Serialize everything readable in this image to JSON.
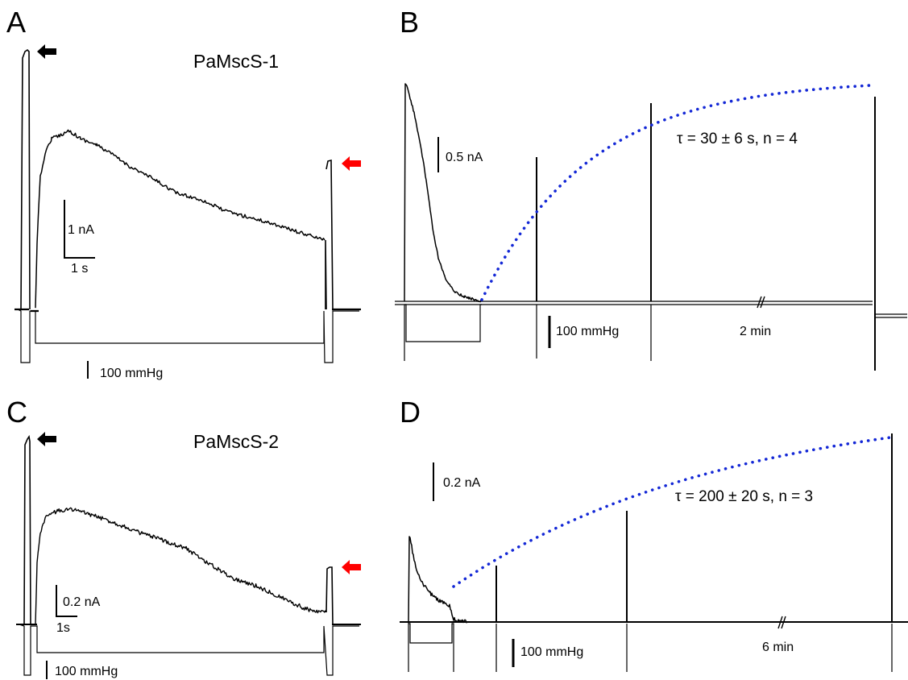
{
  "panels": {
    "a": {
      "letter": "A",
      "construct": "PaMscS-1",
      "current_scale": "1 nA",
      "time_scale": "1 s",
      "pressure_scale": "100 mmHg"
    },
    "b": {
      "letter": "B",
      "current_scale": "0.5 nA",
      "pressure_scale": "100 mmHg",
      "gap_label": "2 min",
      "tau_label": "τ = 30 ± 6 s, n = 4"
    },
    "c": {
      "letter": "C",
      "construct": "PaMscS-2",
      "current_scale": "0.2 nA",
      "time_scale": "1s",
      "pressure_scale": "100 mmHg"
    },
    "d": {
      "letter": "D",
      "current_scale": "0.2 nA",
      "pressure_scale": "100 mmHg",
      "gap_label": "6 min",
      "tau_label": "τ = 200 ± 20 s, n = 3"
    }
  },
  "colors": {
    "trace": "#000000",
    "fit": "#1428d6",
    "arrow_first": "#000000",
    "arrow_second": "#ff0000"
  },
  "icons": {
    "first_pulse_marker": "left-arrow-icon",
    "second_pulse_marker": "left-arrow-icon"
  }
}
